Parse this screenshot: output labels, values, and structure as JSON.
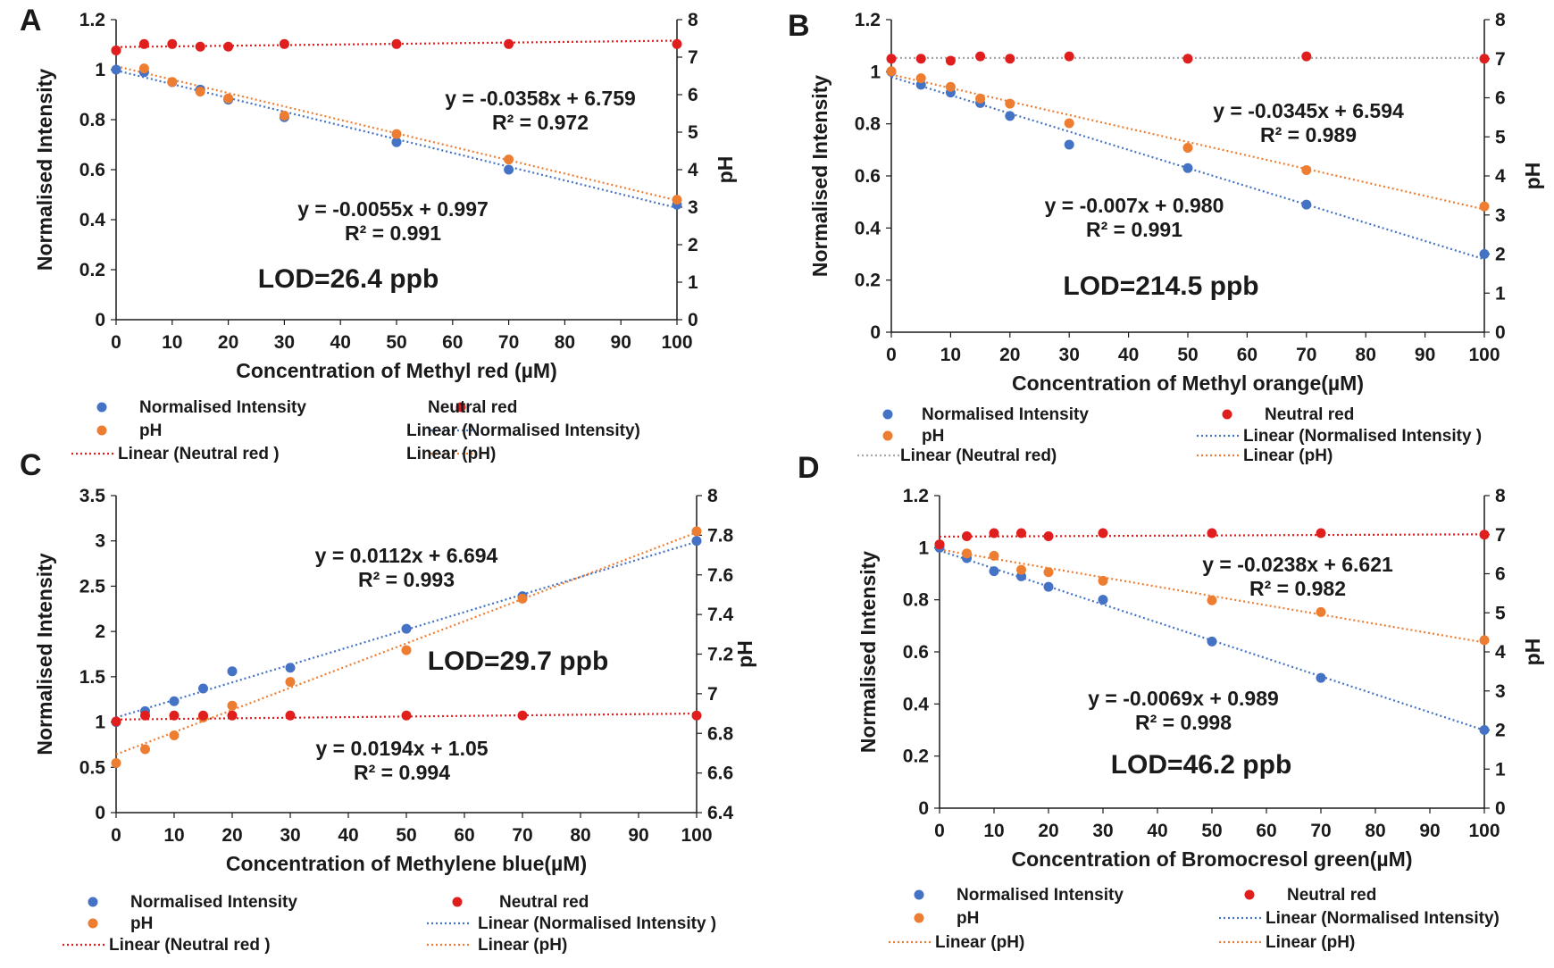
{
  "panels": [
    {
      "label": "A",
      "chart_data": {
        "type": "scatter",
        "xlabel": "Concentration of Methyl red (µM)",
        "ylabel": "Normalised Intensity",
        "y2label": "pH",
        "x_ticks": [
          "0",
          "10",
          "20",
          "30",
          "40",
          "50",
          "60",
          "70",
          "80",
          "90",
          "100"
        ],
        "y_ticks": [
          "0",
          "0.2",
          "0.4",
          "0.6",
          "0.8",
          "1",
          "1.2"
        ],
        "y2_ticks": [
          "0",
          "1",
          "2",
          "3",
          "4",
          "5",
          "6",
          "7",
          "8"
        ],
        "xlim": [
          0,
          100
        ],
        "ylim": [
          0,
          1.2
        ],
        "y2lim": [
          0,
          8
        ],
        "x": [
          0,
          5,
          10,
          15,
          20,
          30,
          50,
          70,
          100
        ],
        "grid": false,
        "series": [
          {
            "name": "Normalised Intensity",
            "axis": "left",
            "color": "#4472c4",
            "values": [
              1.0,
              0.99,
              0.95,
              0.92,
              0.88,
              0.81,
              0.71,
              0.6,
              0.46
            ]
          },
          {
            "name": "pH",
            "axis": "right",
            "color": "#ed7d31",
            "values": [
              7.18,
              6.7,
              6.34,
              6.08,
              5.9,
              5.44,
              4.95,
              4.27,
              3.2
            ]
          },
          {
            "name": "Neutral red",
            "axis": "right",
            "color": "#e01e1e",
            "values": [
              7.18,
              7.35,
              7.35,
              7.28,
              7.28,
              7.35,
              7.35,
              7.35,
              7.35
            ]
          }
        ],
        "trendlines": [
          {
            "name": "Linear (Normalised Intensity)",
            "axis": "left",
            "color": "#4472c4",
            "slope": -0.0055,
            "intercept": 0.997
          },
          {
            "name": "Linear (pH)",
            "axis": "right",
            "color": "#ed7d31",
            "slope": -0.0358,
            "intercept": 6.759
          },
          {
            "name": "Linear (Neutral red )",
            "axis": "right",
            "color": "#e01e1e",
            "slope": 0.0017,
            "intercept": 7.27
          }
        ],
        "annotations": [
          {
            "eq": "y = -0.0358x + 6.759",
            "r2": "R² = 0.972"
          },
          {
            "eq": "y = -0.0055x + 0.997",
            "r2": "R² = 0.991"
          },
          {
            "eq": "LOD=26.4 ppb"
          }
        ],
        "legend": {
          "position": "bottom",
          "entries": [
            {
              "text": "Normalised Intensity",
              "kind": "marker",
              "color": "#4472c4"
            },
            {
              "text": "Neutral red",
              "kind": "marker",
              "color": "#e01e1e"
            },
            {
              "text": "pH",
              "kind": "marker",
              "color": "#ed7d31"
            },
            {
              "text": "Linear (Normalised Intensity)",
              "kind": "line",
              "color": "#4472c4"
            },
            {
              "text": "Linear (Neutral red )",
              "kind": "line",
              "color": "#e01e1e"
            },
            {
              "text": "Linear (pH)",
              "kind": "line",
              "color": "#ed7d31"
            }
          ]
        }
      }
    },
    {
      "label": "B",
      "chart_data": {
        "type": "scatter",
        "xlabel": "Concentration of Methyl orange(µM)",
        "ylabel": "Normalised Intensity",
        "y2label": "pH",
        "x_ticks": [
          "0",
          "10",
          "20",
          "30",
          "40",
          "50",
          "60",
          "70",
          "80",
          "90",
          "100"
        ],
        "y_ticks": [
          "0",
          "0.2",
          "0.4",
          "0.6",
          "0.8",
          "1",
          "1.2"
        ],
        "y2_ticks": [
          "0",
          "1",
          "2",
          "3",
          "4",
          "5",
          "6",
          "7",
          "8"
        ],
        "xlim": [
          0,
          100
        ],
        "ylim": [
          0,
          1.2
        ],
        "y2lim": [
          0,
          8
        ],
        "x": [
          0,
          5,
          10,
          15,
          20,
          30,
          50,
          70,
          100
        ],
        "grid": false,
        "series": [
          {
            "name": "Normalised Intensity",
            "axis": "left",
            "color": "#4472c4",
            "values": [
              1.0,
              0.95,
              0.92,
              0.88,
              0.83,
              0.72,
              0.63,
              0.49,
              0.3
            ]
          },
          {
            "name": "pH",
            "axis": "right",
            "color": "#ed7d31",
            "values": [
              6.68,
              6.5,
              6.28,
              5.98,
              5.85,
              5.35,
              4.72,
              4.15,
              3.22
            ]
          },
          {
            "name": "Neutral red",
            "axis": "right",
            "color": "#e01e1e",
            "values": [
              7.0,
              7.0,
              6.95,
              7.06,
              7.0,
              7.06,
              7.0,
              7.06,
              7.0
            ]
          }
        ],
        "trendlines": [
          {
            "name": "Linear (Normalised Intensity   )",
            "axis": "left",
            "color": "#4472c4",
            "slope": -0.007,
            "intercept": 0.98
          },
          {
            "name": "Linear (pH)",
            "axis": "right",
            "color": "#ed7d31",
            "slope": -0.0345,
            "intercept": 6.594
          },
          {
            "name": "Linear (Neutral red)",
            "axis": "right",
            "color": "#a6a6a6",
            "slope": 0.0,
            "intercept": 7.02
          }
        ],
        "annotations": [
          {
            "eq": "y = -0.0345x + 6.594",
            "r2": "R² = 0.989"
          },
          {
            "eq": "y = -0.007x + 0.980",
            "r2": "R² = 0.991"
          },
          {
            "eq": "LOD=214.5 ppb"
          }
        ],
        "legend": {
          "position": "bottom",
          "entries": [
            {
              "text": "Normalised Intensity",
              "kind": "marker",
              "color": "#4472c4"
            },
            {
              "text": "Neutral red",
              "kind": "marker",
              "color": "#e01e1e"
            },
            {
              "text": "pH",
              "kind": "marker",
              "color": "#ed7d31"
            },
            {
              "text": "Linear (Normalised Intensity   )",
              "kind": "line",
              "color": "#4472c4"
            },
            {
              "text": "Linear (Neutral red)",
              "kind": "line",
              "color": "#a6a6a6"
            },
            {
              "text": "Linear (pH)",
              "kind": "line",
              "color": "#ed7d31"
            }
          ]
        }
      }
    },
    {
      "label": "C",
      "chart_data": {
        "type": "scatter",
        "xlabel": "Concentration of Methylene blue(µM)",
        "ylabel": "Normalised Intensity",
        "y2label": "pH",
        "x_ticks": [
          "0",
          "10",
          "20",
          "30",
          "40",
          "50",
          "60",
          "70",
          "80",
          "90",
          "100"
        ],
        "y_ticks": [
          "0",
          "0.5",
          "1",
          "1.5",
          "2",
          "2.5",
          "3",
          "3.5"
        ],
        "y2_ticks": [
          "6.4",
          "6.6",
          "6.8",
          "7",
          "7.2",
          "7.4",
          "7.6",
          "7.8",
          "8"
        ],
        "xlim": [
          0,
          100
        ],
        "ylim": [
          0,
          3.5
        ],
        "y2lim": [
          6.4,
          8
        ],
        "x": [
          0,
          5,
          10,
          15,
          20,
          30,
          50,
          70,
          100
        ],
        "grid": false,
        "series": [
          {
            "name": "Normalised Intensity",
            "axis": "left",
            "color": "#4472c4",
            "values": [
              1.0,
              1.12,
              1.23,
              1.37,
              1.56,
              1.6,
              2.03,
              2.39,
              3.0
            ]
          },
          {
            "name": "pH",
            "axis": "right",
            "color": "#ed7d31",
            "values": [
              6.65,
              6.72,
              6.79,
              6.88,
              6.94,
              7.06,
              7.22,
              7.48,
              7.82
            ]
          },
          {
            "name": "Neutral red",
            "axis": "right",
            "color": "#e01e1e",
            "values": [
              6.86,
              6.89,
              6.89,
              6.89,
              6.89,
              6.89,
              6.89,
              6.89,
              6.89
            ]
          }
        ],
        "trendlines": [
          {
            "name": "Linear (Normalised Intensity )",
            "axis": "left",
            "color": "#4472c4",
            "slope": 0.0194,
            "intercept": 1.05
          },
          {
            "name": "Linear (pH)",
            "axis": "right",
            "color": "#ed7d31",
            "slope": 0.0112,
            "intercept": 6.694
          },
          {
            "name": "Linear (Neutral red )",
            "axis": "right",
            "color": "#e01e1e",
            "slope": 0.0003,
            "intercept": 6.87
          }
        ],
        "annotations": [
          {
            "eq": "y = 0.0112x + 6.694",
            "r2": "R² = 0.993"
          },
          {
            "eq": "LOD=29.7 ppb"
          },
          {
            "eq": "y = 0.0194x + 1.05",
            "r2": "R² = 0.994"
          }
        ],
        "legend": {
          "position": "bottom",
          "entries": [
            {
              "text": "Normalised Intensity",
              "kind": "marker",
              "color": "#4472c4"
            },
            {
              "text": "Neutral red",
              "kind": "marker",
              "color": "#e01e1e"
            },
            {
              "text": "pH",
              "kind": "marker",
              "color": "#ed7d31"
            },
            {
              "text": "Linear (Normalised Intensity )",
              "kind": "line",
              "color": "#4472c4"
            },
            {
              "text": "Linear (Neutral red )",
              "kind": "line",
              "color": "#e01e1e"
            },
            {
              "text": "Linear (pH)",
              "kind": "line",
              "color": "#ed7d31"
            }
          ]
        }
      }
    },
    {
      "label": "D",
      "chart_data": {
        "type": "scatter",
        "xlabel": "Concentration of Bromocresol green(µM)",
        "ylabel": "Normalised Intensity",
        "y2label": "pH",
        "x_ticks": [
          "0",
          "10",
          "20",
          "30",
          "40",
          "50",
          "60",
          "70",
          "80",
          "90",
          "100"
        ],
        "y_ticks": [
          "0",
          "0.2",
          "0.4",
          "0.6",
          "0.8",
          "1",
          "1.2"
        ],
        "y2_ticks": [
          "0",
          "1",
          "2",
          "3",
          "4",
          "5",
          "6",
          "7",
          "8"
        ],
        "xlim": [
          0,
          100
        ],
        "ylim": [
          0,
          1.2
        ],
        "y2lim": [
          0,
          8
        ],
        "x": [
          0,
          5,
          10,
          15,
          20,
          30,
          50,
          70,
          100
        ],
        "grid": false,
        "series": [
          {
            "name": "Normalised Intensity",
            "axis": "left",
            "color": "#4472c4",
            "values": [
              1.0,
              0.96,
              0.91,
              0.89,
              0.85,
              0.8,
              0.64,
              0.5,
              0.3
            ]
          },
          {
            "name": "pH",
            "axis": "right",
            "color": "#ed7d31",
            "values": [
              6.75,
              6.52,
              6.46,
              6.1,
              6.04,
              5.82,
              5.32,
              5.02,
              4.3
            ]
          },
          {
            "name": "Neutral red",
            "axis": "right",
            "color": "#e01e1e",
            "values": [
              6.75,
              6.96,
              7.04,
              7.04,
              6.96,
              7.04,
              7.04,
              7.04,
              7.0
            ]
          }
        ],
        "trendlines": [
          {
            "name": "Linear (Normalised Intensity)",
            "axis": "left",
            "color": "#4472c4",
            "slope": -0.0069,
            "intercept": 0.989
          },
          {
            "name": "Linear (pH)",
            "axis": "right",
            "color": "#ed7d31",
            "slope": -0.0238,
            "intercept": 6.621
          },
          {
            "name": "Linear (pH)",
            "axis": "right",
            "color": "#e01e1e",
            "slope": 0.0006,
            "intercept": 6.95
          }
        ],
        "annotations": [
          {
            "eq": "y = -0.0238x + 6.621",
            "r2": "R² = 0.982"
          },
          {
            "eq": "y = -0.0069x + 0.989",
            "r2": "R² = 0.998"
          },
          {
            "eq": "LOD=46.2 ppb"
          }
        ],
        "legend": {
          "position": "bottom",
          "entries": [
            {
              "text": "Normalised Intensity",
              "kind": "marker",
              "color": "#4472c4"
            },
            {
              "text": "Neutral red",
              "kind": "marker",
              "color": "#e01e1e"
            },
            {
              "text": "pH",
              "kind": "marker",
              "color": "#ed7d31"
            },
            {
              "text": "Linear (Normalised Intensity)",
              "kind": "line",
              "color": "#4472c4"
            },
            {
              "text": "Linear (pH)",
              "kind": "line",
              "color": "#ed7d31"
            },
            {
              "text": "Linear (pH)",
              "kind": "line",
              "color": "#ed7d31"
            }
          ]
        }
      }
    }
  ]
}
